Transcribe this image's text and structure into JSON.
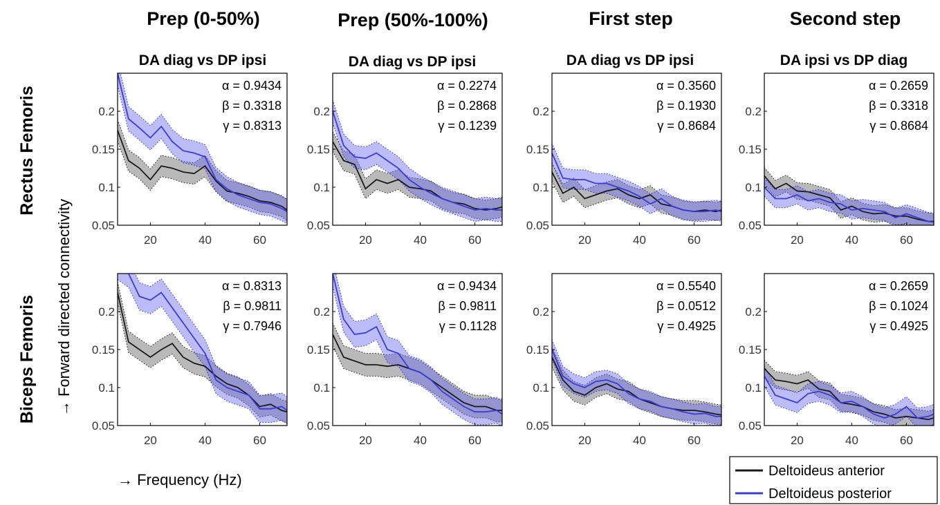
{
  "figure": {
    "row_titles": [
      "Rectus Femoris",
      "Biceps Femoris"
    ],
    "ylabel": "→ Forward directed connectivity",
    "xlabel": "→ Frequency (Hz)",
    "legend": [
      {
        "label": "Deltoideus anterior",
        "color": "#1a1a1a"
      },
      {
        "label": "Deltoideus posterior",
        "color": "#3b3bd6"
      }
    ]
  },
  "columns": [
    {
      "title": "Prep (0-50%)",
      "subtitle": "DA diag vs DP ipsi"
    },
    {
      "title": "Prep (50%-100%)",
      "subtitle": "DA diag vs DP ipsi"
    },
    {
      "title": "First step",
      "subtitle": "DA diag vs DP ipsi"
    },
    {
      "title": "Second step",
      "subtitle": "DA ipsi vs DP diag"
    }
  ],
  "chart_data": [
    {
      "type": "line",
      "row": "Rectus Femoris",
      "column": "Prep (0-50%)",
      "stats": {
        "alpha": "α = 0.9434",
        "beta": "β = 0.3318",
        "gamma": "γ = 0.8313"
      },
      "xlim": [
        8,
        70
      ],
      "ylim": [
        0.05,
        0.25
      ],
      "xticks": [
        20,
        40,
        60
      ],
      "yticks": [
        0.05,
        0.1,
        0.15,
        0.2
      ],
      "x": [
        8,
        12,
        16,
        20,
        24,
        28,
        32,
        36,
        40,
        44,
        48,
        52,
        56,
        60,
        64,
        68,
        70
      ],
      "series": [
        {
          "name": "Deltoideus anterior",
          "values": [
            0.175,
            0.135,
            0.125,
            0.11,
            0.128,
            0.125,
            0.12,
            0.118,
            0.128,
            0.108,
            0.095,
            0.092,
            0.088,
            0.082,
            0.08,
            0.075,
            0.07
          ],
          "band": 0.014
        },
        {
          "name": "Deltoideus posterior",
          "values": [
            0.25,
            0.19,
            0.178,
            0.165,
            0.18,
            0.16,
            0.148,
            0.145,
            0.14,
            0.11,
            0.098,
            0.09,
            0.085,
            0.08,
            0.078,
            0.072,
            0.068
          ],
          "band": 0.016
        }
      ]
    },
    {
      "type": "line",
      "row": "Rectus Femoris",
      "column": "Prep (50%-100%)",
      "stats": {
        "alpha": "α = 0.2274",
        "beta": "β = 0.2868",
        "gamma": "γ = 0.1239"
      },
      "xlim": [
        8,
        70
      ],
      "ylim": [
        0.05,
        0.25
      ],
      "xticks": [
        20,
        40,
        60
      ],
      "yticks": [
        0.05,
        0.1,
        0.15,
        0.2
      ],
      "x": [
        8,
        12,
        16,
        20,
        24,
        28,
        32,
        36,
        40,
        44,
        48,
        52,
        56,
        60,
        64,
        68,
        70
      ],
      "series": [
        {
          "name": "Deltoideus anterior",
          "values": [
            0.16,
            0.135,
            0.13,
            0.098,
            0.11,
            0.105,
            0.11,
            0.1,
            0.098,
            0.095,
            0.085,
            0.08,
            0.078,
            0.072,
            0.07,
            0.072,
            0.074
          ],
          "band": 0.013
        },
        {
          "name": "Deltoideus posterior",
          "values": [
            0.2,
            0.155,
            0.14,
            0.138,
            0.145,
            0.135,
            0.125,
            0.11,
            0.1,
            0.092,
            0.085,
            0.08,
            0.075,
            0.07,
            0.072,
            0.07,
            0.07
          ],
          "band": 0.015
        }
      ]
    },
    {
      "type": "line",
      "row": "Rectus Femoris",
      "column": "First step",
      "stats": {
        "alpha": "α = 0.3560",
        "beta": "β = 0.1930",
        "gamma": "γ = 0.8684"
      },
      "xlim": [
        8,
        70
      ],
      "ylim": [
        0.05,
        0.25
      ],
      "xticks": [
        20,
        40,
        60
      ],
      "yticks": [
        0.05,
        0.1,
        0.15,
        0.2
      ],
      "x": [
        8,
        12,
        16,
        20,
        24,
        28,
        32,
        36,
        40,
        44,
        48,
        52,
        56,
        60,
        64,
        68,
        70
      ],
      "series": [
        {
          "name": "Deltoideus anterior",
          "values": [
            0.12,
            0.092,
            0.1,
            0.085,
            0.09,
            0.095,
            0.098,
            0.09,
            0.085,
            0.09,
            0.078,
            0.075,
            0.07,
            0.068,
            0.07,
            0.068,
            0.07
          ],
          "band": 0.012
        },
        {
          "name": "Deltoideus posterior",
          "values": [
            0.145,
            0.112,
            0.11,
            0.11,
            0.105,
            0.105,
            0.1,
            0.095,
            0.088,
            0.078,
            0.085,
            0.075,
            0.07,
            0.068,
            0.068,
            0.07,
            0.068
          ],
          "band": 0.013
        }
      ]
    },
    {
      "type": "line",
      "row": "Rectus Femoris",
      "column": "Second step",
      "stats": {
        "alpha": "α = 0.2659",
        "beta": "β = 0.3318",
        "gamma": "γ = 0.8684"
      },
      "xlim": [
        8,
        70
      ],
      "ylim": [
        0.05,
        0.25
      ],
      "xticks": [
        20,
        40,
        60
      ],
      "yticks": [
        0.05,
        0.1,
        0.15,
        0.2
      ],
      "x": [
        8,
        12,
        16,
        20,
        24,
        28,
        32,
        36,
        40,
        44,
        48,
        52,
        56,
        60,
        64,
        68,
        70
      ],
      "series": [
        {
          "name": "Deltoideus anterior",
          "values": [
            0.115,
            0.098,
            0.105,
            0.095,
            0.094,
            0.09,
            0.086,
            0.07,
            0.075,
            0.068,
            0.065,
            0.066,
            0.062,
            0.062,
            0.058,
            0.055,
            0.055
          ],
          "band": 0.011
        },
        {
          "name": "Deltoideus posterior",
          "values": [
            0.1,
            0.085,
            0.085,
            0.09,
            0.082,
            0.085,
            0.08,
            0.078,
            0.07,
            0.072,
            0.07,
            0.068,
            0.06,
            0.065,
            0.06,
            0.055,
            0.054
          ],
          "band": 0.012
        }
      ]
    },
    {
      "type": "line",
      "row": "Biceps Femoris",
      "column": "Prep (0-50%)",
      "stats": {
        "alpha": "α = 0.8313",
        "beta": "β = 0.9811",
        "gamma": "γ = 0.7946"
      },
      "xlim": [
        8,
        70
      ],
      "ylim": [
        0.05,
        0.25
      ],
      "xticks": [
        20,
        40,
        60
      ],
      "yticks": [
        0.05,
        0.1,
        0.15,
        0.2
      ],
      "x": [
        8,
        12,
        16,
        20,
        24,
        28,
        32,
        36,
        40,
        44,
        48,
        52,
        56,
        60,
        64,
        68,
        70
      ],
      "series": [
        {
          "name": "Deltoideus anterior",
          "values": [
            0.225,
            0.16,
            0.15,
            0.14,
            0.15,
            0.158,
            0.14,
            0.132,
            0.128,
            0.115,
            0.105,
            0.1,
            0.09,
            0.075,
            0.078,
            0.07,
            0.068
          ],
          "band": 0.014
        },
        {
          "name": "Deltoideus posterior",
          "values": [
            0.26,
            0.25,
            0.22,
            0.215,
            0.225,
            0.205,
            0.185,
            0.165,
            0.145,
            0.11,
            0.1,
            0.095,
            0.09,
            0.072,
            0.072,
            0.075,
            0.07
          ],
          "band": 0.018
        }
      ]
    },
    {
      "type": "line",
      "row": "Biceps Femoris",
      "column": "Prep (50%-100%)",
      "stats": {
        "alpha": "α = 0.9434",
        "beta": "β = 0.9811",
        "gamma": "γ = 0.1128"
      },
      "xlim": [
        8,
        70
      ],
      "ylim": [
        0.05,
        0.25
      ],
      "xticks": [
        20,
        40,
        60
      ],
      "yticks": [
        0.05,
        0.1,
        0.15,
        0.2
      ],
      "x": [
        8,
        12,
        16,
        20,
        24,
        28,
        32,
        36,
        40,
        44,
        48,
        52,
        56,
        60,
        64,
        68,
        70
      ],
      "series": [
        {
          "name": "Deltoideus anterior",
          "values": [
            0.17,
            0.14,
            0.135,
            0.13,
            0.13,
            0.128,
            0.13,
            0.125,
            0.12,
            0.11,
            0.1,
            0.09,
            0.08,
            0.075,
            0.075,
            0.07,
            0.07
          ],
          "band": 0.015
        },
        {
          "name": "Deltoideus posterior",
          "values": [
            0.25,
            0.19,
            0.17,
            0.172,
            0.18,
            0.15,
            0.145,
            0.125,
            0.12,
            0.11,
            0.095,
            0.085,
            0.075,
            0.068,
            0.068,
            0.07,
            0.065
          ],
          "band": 0.017
        }
      ]
    },
    {
      "type": "line",
      "row": "Biceps Femoris",
      "column": "First step",
      "stats": {
        "alpha": "α = 0.5540",
        "beta": "β = 0.0512",
        "gamma": "γ = 0.4925"
      },
      "xlim": [
        8,
        70
      ],
      "ylim": [
        0.05,
        0.25
      ],
      "xticks": [
        20,
        40,
        60
      ],
      "yticks": [
        0.05,
        0.1,
        0.15,
        0.2
      ],
      "x": [
        8,
        12,
        16,
        20,
        24,
        28,
        32,
        36,
        40,
        44,
        48,
        52,
        56,
        60,
        64,
        68,
        70
      ],
      "series": [
        {
          "name": "Deltoideus anterior",
          "values": [
            0.14,
            0.11,
            0.095,
            0.09,
            0.1,
            0.105,
            0.098,
            0.095,
            0.085,
            0.08,
            0.075,
            0.072,
            0.07,
            0.07,
            0.068,
            0.065,
            0.064
          ],
          "band": 0.013
        },
        {
          "name": "Deltoideus posterior",
          "values": [
            0.15,
            0.115,
            0.105,
            0.1,
            0.108,
            0.11,
            0.105,
            0.092,
            0.085,
            0.082,
            0.075,
            0.072,
            0.068,
            0.065,
            0.066,
            0.062,
            0.062
          ],
          "band": 0.013
        }
      ]
    },
    {
      "type": "line",
      "row": "Biceps Femoris",
      "column": "Second step",
      "stats": {
        "alpha": "α = 0.2659",
        "beta": "β = 0.1024",
        "gamma": "γ = 0.4925"
      },
      "xlim": [
        8,
        70
      ],
      "ylim": [
        0.05,
        0.25
      ],
      "xticks": [
        20,
        40,
        60
      ],
      "yticks": [
        0.05,
        0.1,
        0.15,
        0.2
      ],
      "x": [
        8,
        12,
        16,
        20,
        24,
        28,
        32,
        36,
        40,
        44,
        48,
        52,
        56,
        60,
        64,
        68,
        70
      ],
      "series": [
        {
          "name": "Deltoideus anterior",
          "values": [
            0.125,
            0.11,
            0.108,
            0.105,
            0.11,
            0.098,
            0.095,
            0.08,
            0.078,
            0.075,
            0.068,
            0.065,
            0.06,
            0.062,
            0.06,
            0.058,
            0.06
          ],
          "band": 0.011
        },
        {
          "name": "Deltoideus posterior",
          "values": [
            0.115,
            0.09,
            0.085,
            0.08,
            0.092,
            0.095,
            0.09,
            0.08,
            0.082,
            0.075,
            0.065,
            0.06,
            0.065,
            0.075,
            0.06,
            0.062,
            0.065
          ],
          "band": 0.013
        }
      ]
    }
  ]
}
